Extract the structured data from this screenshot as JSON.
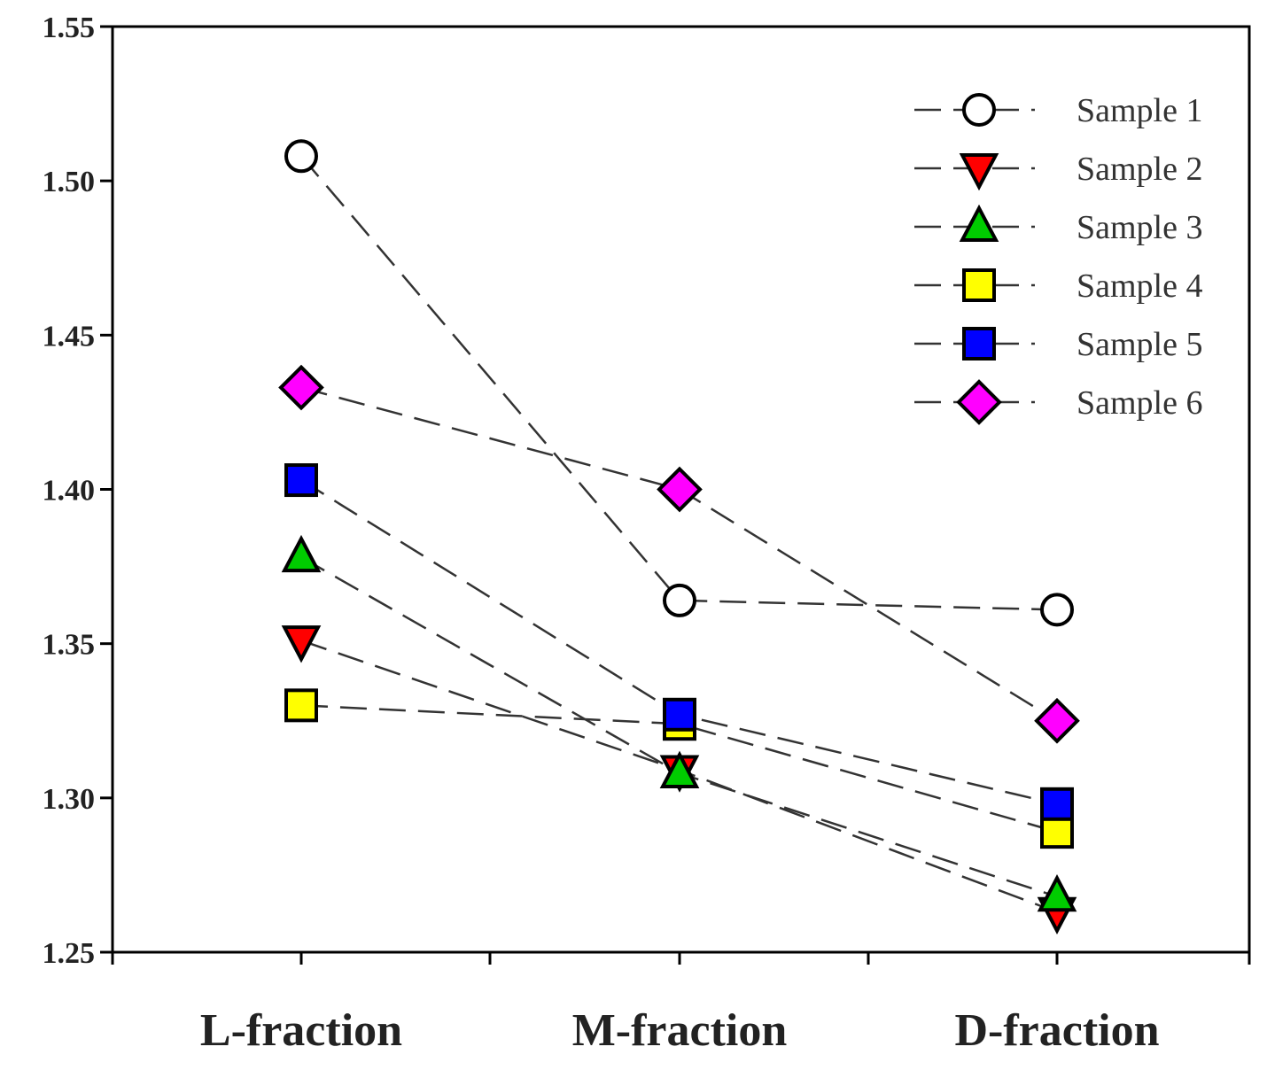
{
  "chart_data": {
    "type": "line",
    "title": "",
    "xlabel": "",
    "ylabel": "",
    "categories": [
      "L-fraction",
      "M-fraction",
      "D-fraction"
    ],
    "ylim": [
      1.25,
      1.55
    ],
    "yticks": [
      "1.25",
      "1.30",
      "1.35",
      "1.40",
      "1.45",
      "1.50",
      "1.55"
    ],
    "grid": false,
    "legend_position": "top-right",
    "series": [
      {
        "name": "Sample 1",
        "marker": "circle",
        "color": "#ffffff",
        "values": [
          1.508,
          1.364,
          1.361
        ]
      },
      {
        "name": "Sample 2",
        "marker": "triangle-down",
        "color": "#ff0000",
        "values": [
          1.351,
          1.309,
          1.263
        ]
      },
      {
        "name": "Sample 3",
        "marker": "triangle-up",
        "color": "#00cc00",
        "values": [
          1.378,
          1.308,
          1.268
        ]
      },
      {
        "name": "Sample 4",
        "marker": "square",
        "color": "#ffff00",
        "values": [
          1.33,
          1.324,
          1.289
        ]
      },
      {
        "name": "Sample 5",
        "marker": "square",
        "color": "#0000ff",
        "values": [
          1.403,
          1.327,
          1.298
        ]
      },
      {
        "name": "Sample 6",
        "marker": "diamond",
        "color": "#ff00ff",
        "values": [
          1.433,
          1.4,
          1.325
        ]
      }
    ]
  }
}
